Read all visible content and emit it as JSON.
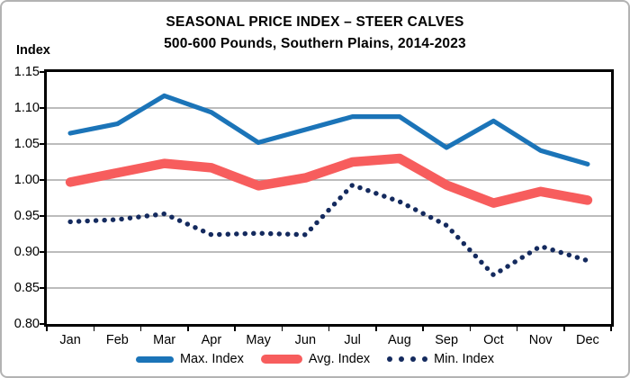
{
  "window": {
    "background": "#ffffff",
    "border_color": "#b3b3b3"
  },
  "title": {
    "line1": "SEASONAL PRICE INDEX – STEER CALVES",
    "line2": "500-600 Pounds, Southern Plains, 2014-2023"
  },
  "y_axis": {
    "label": "Index",
    "tick_labels": [
      "1.15",
      "1.10",
      "1.05",
      "1.00",
      "0.95",
      "0.90",
      "0.85",
      "0.80"
    ]
  },
  "colors": {
    "max_line": "#1b74b8",
    "avg_line": "#f75d5d",
    "min_line": "#142a5e",
    "gridline": "#a6a6a6",
    "plot_border": "#000000"
  },
  "chart_data": {
    "type": "line",
    "title": "SEASONAL PRICE INDEX – STEER CALVES",
    "subtitle": "500-600 Pounds, Southern Plains, 2014-2023",
    "categories": [
      "Jan",
      "Feb",
      "Mar",
      "Apr",
      "May",
      "Jun",
      "Jul",
      "Aug",
      "Sep",
      "Oct",
      "Nov",
      "Dec"
    ],
    "series": [
      {
        "name": "Max. Index",
        "color": "#1b74b8",
        "style": "solid",
        "values": [
          1.065,
          1.078,
          1.117,
          1.094,
          1.052,
          1.07,
          1.088,
          1.088,
          1.045,
          1.082,
          1.041,
          1.022
        ]
      },
      {
        "name": "Avg. Index",
        "color": "#f75d5d",
        "style": "solid-thick",
        "values": [
          0.997,
          1.01,
          1.023,
          1.017,
          0.992,
          1.003,
          1.025,
          1.03,
          0.993,
          0.968,
          0.984,
          0.972
        ]
      },
      {
        "name": "Min. Index",
        "color": "#142a5e",
        "style": "dotted",
        "values": [
          0.942,
          0.945,
          0.953,
          0.924,
          0.926,
          0.924,
          0.993,
          0.97,
          0.937,
          0.868,
          0.908,
          0.888
        ]
      }
    ],
    "ylabel": "Index",
    "ylim": [
      0.8,
      1.15
    ],
    "ytick_step": 0.05,
    "grid": true,
    "legend_position": "bottom"
  },
  "legend": {
    "items": [
      {
        "label": "Max. Index",
        "swatch": "line",
        "color": "#1b74b8"
      },
      {
        "label": "Avg. Index",
        "swatch": "line-thick",
        "color": "#f75d5d"
      },
      {
        "label": "Min. Index",
        "swatch": "dots",
        "color": "#142a5e"
      }
    ]
  }
}
